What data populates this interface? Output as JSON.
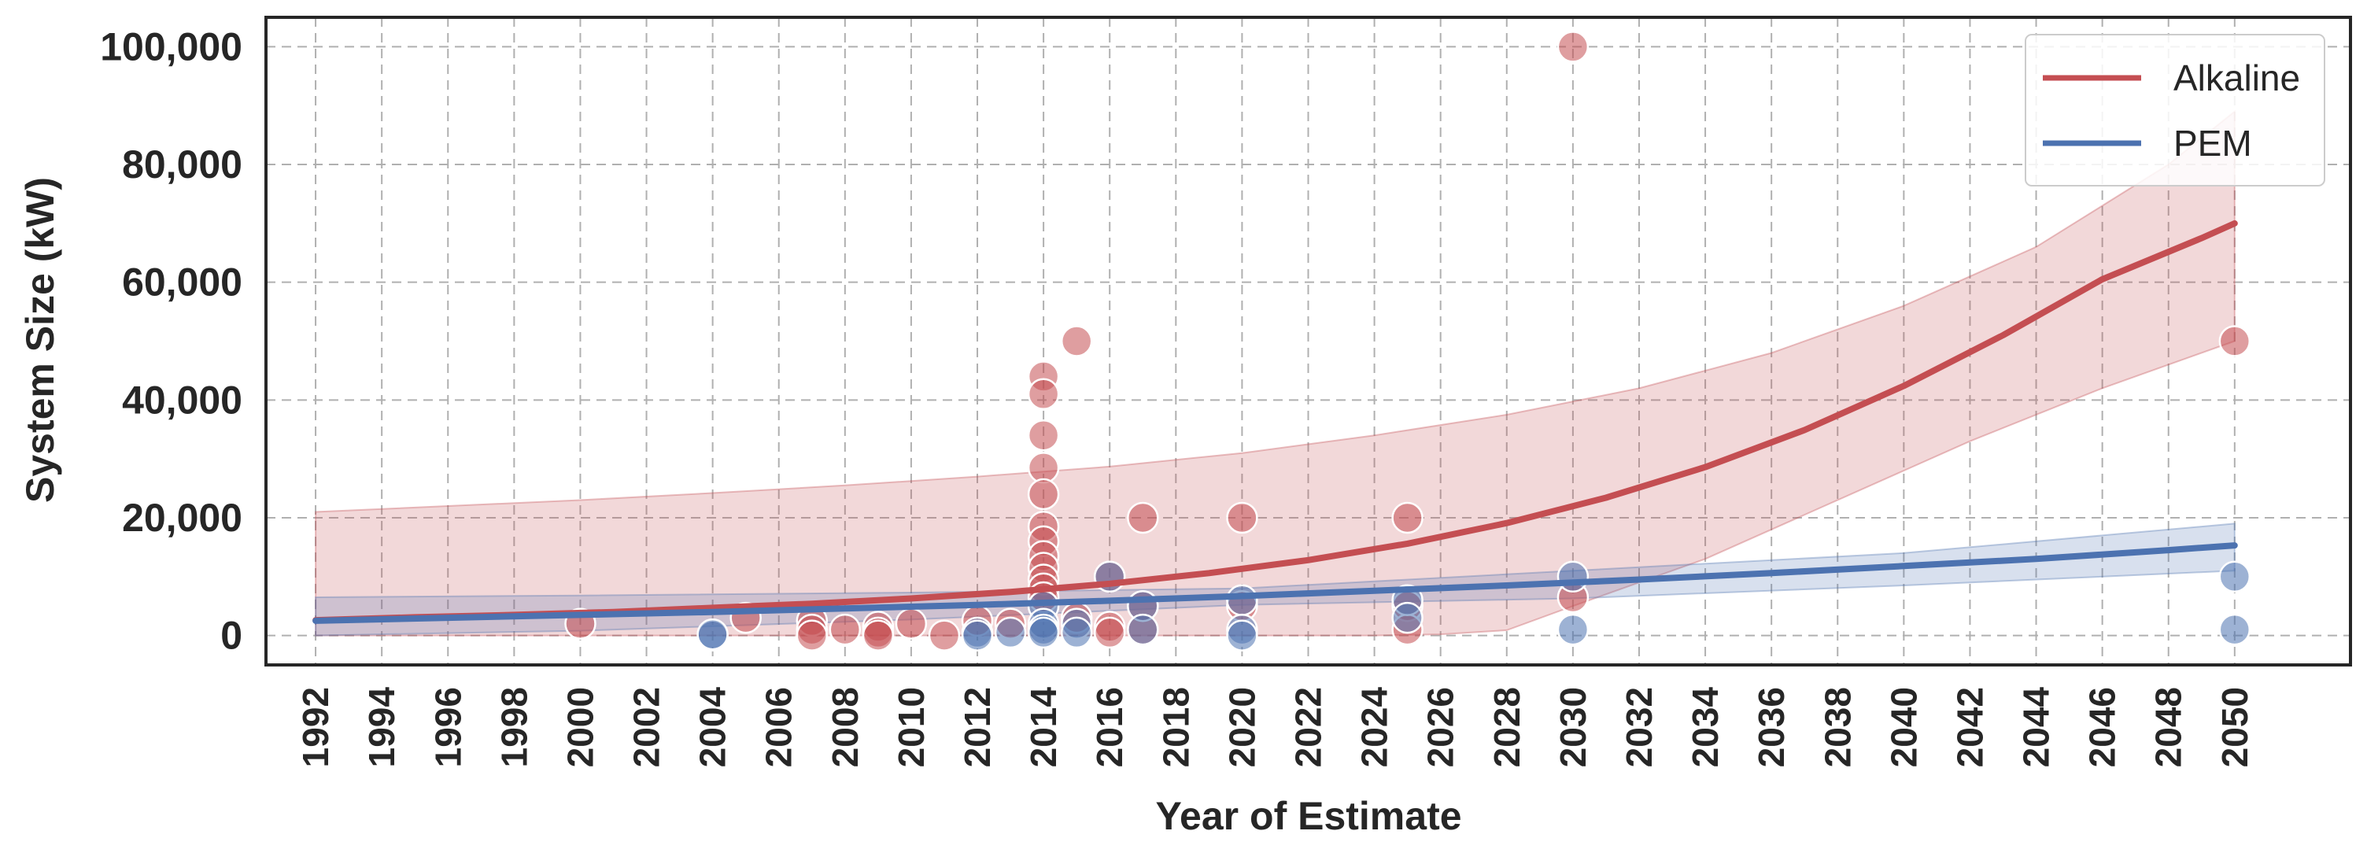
{
  "chart_data": {
    "type": "scatter",
    "title": "",
    "xlabel": "Year of Estimate",
    "ylabel": "System Size (kW)",
    "xlim": [
      1990.5,
      2053.5
    ],
    "ylim": [
      -5000,
      105000
    ],
    "xticks": [
      1992,
      1994,
      1996,
      1998,
      2000,
      2002,
      2004,
      2006,
      2008,
      2010,
      2012,
      2014,
      2016,
      2018,
      2020,
      2022,
      2024,
      2026,
      2028,
      2030,
      2032,
      2034,
      2036,
      2038,
      2040,
      2042,
      2044,
      2046,
      2048,
      2050
    ],
    "xtick_labels": [
      "1992",
      "1994",
      "1996",
      "1998",
      "2000",
      "2002",
      "2004",
      "2006",
      "2008",
      "2010",
      "2012",
      "2014",
      "2016",
      "2018",
      "2020",
      "2022",
      "2024",
      "2026",
      "2028",
      "2030",
      "2032",
      "2034",
      "2036",
      "2038",
      "2040",
      "2042",
      "2044",
      "2046",
      "2048",
      "2050"
    ],
    "yticks": [
      0,
      20000,
      40000,
      60000,
      80000,
      100000
    ],
    "ytick_labels": [
      "0",
      "20,000",
      "40,000",
      "60,000",
      "80,000",
      "100,000"
    ],
    "grid": true,
    "legend_position": "top-right",
    "colors": {
      "alkaline": "#c44e52",
      "pem": "#4c72b0",
      "axis": "#262626",
      "grid": "#b0b0b0"
    },
    "series": [
      {
        "name": "Alkaline",
        "color": "#c44e52",
        "trend": {
          "x": [
            1992,
            1995,
            1998,
            2001,
            2004,
            2007,
            2010,
            2013,
            2016,
            2019,
            2022,
            2025,
            2028,
            2031,
            2034,
            2037,
            2040,
            2043,
            2046,
            2049,
            2050
          ],
          "y": [
            2600,
            3100,
            3500,
            4000,
            4700,
            5400,
            6300,
            7400,
            8800,
            10600,
            12800,
            15600,
            19100,
            23400,
            28600,
            34900,
            42400,
            51000,
            60500,
            67500,
            70000
          ]
        },
        "band_upper": {
          "x": [
            1992,
            1996,
            2000,
            2004,
            2008,
            2012,
            2016,
            2020,
            2024,
            2028,
            2032,
            2036,
            2040,
            2044,
            2048,
            2050
          ],
          "y": [
            21000,
            22000,
            23000,
            24200,
            25500,
            27000,
            28700,
            31000,
            34000,
            37500,
            42000,
            48000,
            56000,
            66000,
            80000,
            89000
          ]
        },
        "band_lower": {
          "x": [
            1992,
            1996,
            2000,
            2004,
            2008,
            2012,
            2016,
            2020,
            2024,
            2026,
            2028,
            2030,
            2034,
            2038,
            2042,
            2046,
            2050
          ],
          "y": [
            0,
            0,
            0,
            0,
            0,
            0,
            0,
            0,
            0,
            200,
            900,
            5000,
            13000,
            23000,
            33000,
            42000,
            50000
          ]
        },
        "points": [
          {
            "x": 2000,
            "y": 2000
          },
          {
            "x": 2005,
            "y": 3000
          },
          {
            "x": 2007,
            "y": 2500
          },
          {
            "x": 2007,
            "y": 1000
          },
          {
            "x": 2007,
            "y": 0
          },
          {
            "x": 2008,
            "y": 1000
          },
          {
            "x": 2009,
            "y": 1500
          },
          {
            "x": 2009,
            "y": 500
          },
          {
            "x": 2009,
            "y": 0
          },
          {
            "x": 2010,
            "y": 2000
          },
          {
            "x": 2011,
            "y": 0
          },
          {
            "x": 2012,
            "y": 2500
          },
          {
            "x": 2013,
            "y": 2000
          },
          {
            "x": 2014,
            "y": 44000
          },
          {
            "x": 2014,
            "y": 41000
          },
          {
            "x": 2014,
            "y": 34000
          },
          {
            "x": 2014,
            "y": 28500
          },
          {
            "x": 2014,
            "y": 24000
          },
          {
            "x": 2014,
            "y": 18500
          },
          {
            "x": 2014,
            "y": 16000
          },
          {
            "x": 2014,
            "y": 13500
          },
          {
            "x": 2014,
            "y": 11500
          },
          {
            "x": 2014,
            "y": 9500
          },
          {
            "x": 2014,
            "y": 8000
          },
          {
            "x": 2014,
            "y": 6500
          },
          {
            "x": 2015,
            "y": 50000
          },
          {
            "x": 2015,
            "y": 3000
          },
          {
            "x": 2016,
            "y": 1500
          },
          {
            "x": 2016,
            "y": 500
          },
          {
            "x": 2016,
            "y": 10000
          },
          {
            "x": 2017,
            "y": 20000
          },
          {
            "x": 2017,
            "y": 5000
          },
          {
            "x": 2017,
            "y": 1000
          },
          {
            "x": 2020,
            "y": 20000
          },
          {
            "x": 2020,
            "y": 5000
          },
          {
            "x": 2025,
            "y": 20000
          },
          {
            "x": 2025,
            "y": 5000
          },
          {
            "x": 2025,
            "y": 1000
          },
          {
            "x": 2030,
            "y": 100000
          },
          {
            "x": 2030,
            "y": 6500
          },
          {
            "x": 2050,
            "y": 50000
          }
        ]
      },
      {
        "name": "PEM",
        "color": "#4c72b0",
        "trend": {
          "x": [
            1992,
            1996,
            2000,
            2004,
            2008,
            2012,
            2016,
            2020,
            2024,
            2028,
            2032,
            2036,
            2040,
            2044,
            2048,
            2050
          ],
          "y": [
            2500,
            3000,
            3500,
            4000,
            4600,
            5200,
            5900,
            6700,
            7600,
            8500,
            9500,
            10600,
            11800,
            13000,
            14500,
            15300
          ]
        },
        "band_upper": {
          "x": [
            1992,
            2000,
            2010,
            2020,
            2030,
            2040,
            2050
          ],
          "y": [
            6500,
            6800,
            7300,
            8000,
            11000,
            14000,
            19000
          ]
        },
        "band_lower": {
          "x": [
            1992,
            2000,
            2010,
            2020,
            2030,
            2040,
            2050
          ],
          "y": [
            0,
            800,
            2700,
            5200,
            6300,
            8500,
            11000
          ]
        },
        "points": [
          {
            "x": 2004,
            "y": 0
          },
          {
            "x": 2004,
            "y": 200
          },
          {
            "x": 2012,
            "y": 500
          },
          {
            "x": 2012,
            "y": 0
          },
          {
            "x": 2013,
            "y": 500
          },
          {
            "x": 2014,
            "y": 5000
          },
          {
            "x": 2014,
            "y": 2000
          },
          {
            "x": 2014,
            "y": 1000
          },
          {
            "x": 2014,
            "y": 500
          },
          {
            "x": 2015,
            "y": 2000
          },
          {
            "x": 2015,
            "y": 500
          },
          {
            "x": 2016,
            "y": 10000
          },
          {
            "x": 2017,
            "y": 5000
          },
          {
            "x": 2017,
            "y": 1000
          },
          {
            "x": 2020,
            "y": 6000
          },
          {
            "x": 2020,
            "y": 1000
          },
          {
            "x": 2020,
            "y": 0
          },
          {
            "x": 2025,
            "y": 6000
          },
          {
            "x": 2025,
            "y": 3000
          },
          {
            "x": 2030,
            "y": 10000
          },
          {
            "x": 2030,
            "y": 1000
          },
          {
            "x": 2050,
            "y": 10000
          },
          {
            "x": 2050,
            "y": 1000
          }
        ]
      }
    ]
  }
}
